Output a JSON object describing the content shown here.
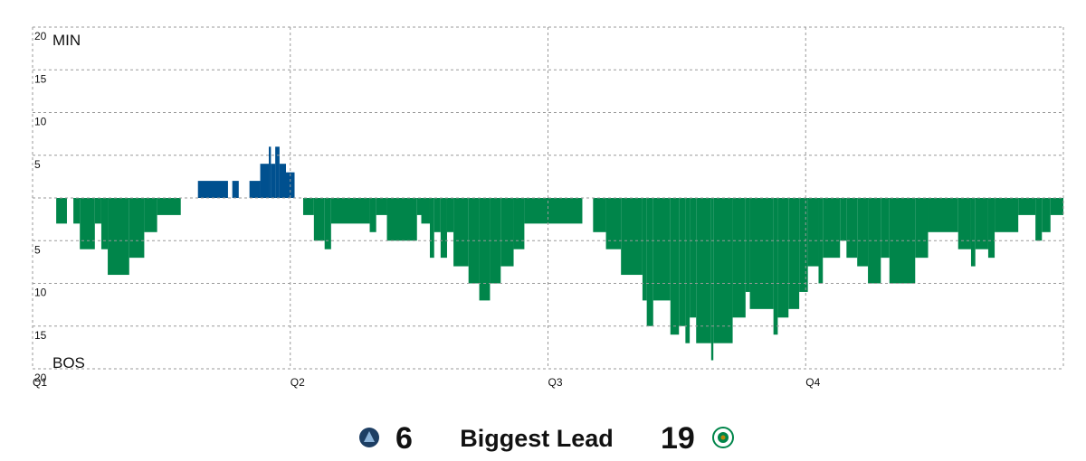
{
  "chart_data": {
    "type": "lead-flow",
    "top_team": "MIN",
    "bottom_team": "BOS",
    "positive_color": "#00508f",
    "negative_color": "#00854a",
    "x": [
      0,
      1.1,
      1.6,
      1.9,
      2.2,
      2.9,
      3.2,
      3.5,
      4.5,
      5.2,
      5.8,
      6.9,
      7.7,
      9.1,
      9.3,
      9.6,
      10.1,
      10.6,
      11.0,
      11.1,
      11.3,
      11.5,
      11.8,
      12.2,
      12.6,
      13.1,
      13.6,
      13.9,
      15.7,
      16.0,
      16.5,
      17.9,
      18.1,
      18.5,
      18.7,
      19.0,
      19.3,
      19.6,
      20.3,
      20.8,
      21.3,
      21.8,
      22.4,
      22.9,
      25.6,
      26.1,
      26.7,
      27.4,
      28.4,
      28.6,
      28.9,
      29.7,
      30.1,
      30.4,
      30.6,
      30.9,
      31.6,
      31.7,
      32.6,
      33.2,
      33.4,
      34.5,
      34.7,
      35.2,
      35.7,
      36.1,
      36.6,
      36.8,
      37.6,
      37.9,
      38.4,
      38.9,
      39.5,
      39.9,
      41.1,
      41.7,
      43.1,
      43.7,
      43.9,
      44.5,
      44.8,
      45.9,
      46.7,
      47.0,
      47.4
    ],
    "values": [
      0,
      -3,
      0,
      -3,
      -6,
      -3,
      -6,
      -9,
      -7,
      -4,
      -2,
      0,
      2,
      0,
      2,
      0,
      2,
      4,
      6,
      4,
      6,
      4,
      3,
      0,
      -2,
      -5,
      -6,
      -3,
      -4,
      -2,
      -5,
      -2,
      -3,
      -7,
      -4,
      -7,
      -4,
      -8,
      -10,
      -12,
      -10,
      -8,
      -6,
      -3,
      0,
      -4,
      -6,
      -9,
      -12,
      -15,
      -12,
      -16,
      -15,
      -17,
      -14,
      -17,
      -19,
      -17,
      -14,
      -11,
      -13,
      -16,
      -14,
      -13,
      -11,
      -8,
      -10,
      -7,
      -5,
      -7,
      -8,
      -10,
      -7,
      -10,
      -7,
      -4,
      -6,
      -8,
      -6,
      -7,
      -4,
      -2,
      -5,
      -4,
      -2
    ],
    "xlim": [
      0,
      48
    ],
    "xticks": [
      {
        "value": 0,
        "label": "Q1"
      },
      {
        "value": 12,
        "label": "Q2"
      },
      {
        "value": 24,
        "label": "Q3"
      },
      {
        "value": 36,
        "label": "Q4"
      }
    ],
    "ylim": [
      -20,
      20
    ],
    "yticks": [
      20,
      15,
      10,
      5,
      {
        "value": -5,
        "label": "5"
      },
      {
        "value": -10,
        "label": "10"
      },
      {
        "value": -15,
        "label": "15"
      },
      {
        "value": -20,
        "label": "20"
      }
    ],
    "grid": true
  },
  "footer": {
    "left_value": 6,
    "label": "Biggest Lead",
    "right_value": 19
  }
}
